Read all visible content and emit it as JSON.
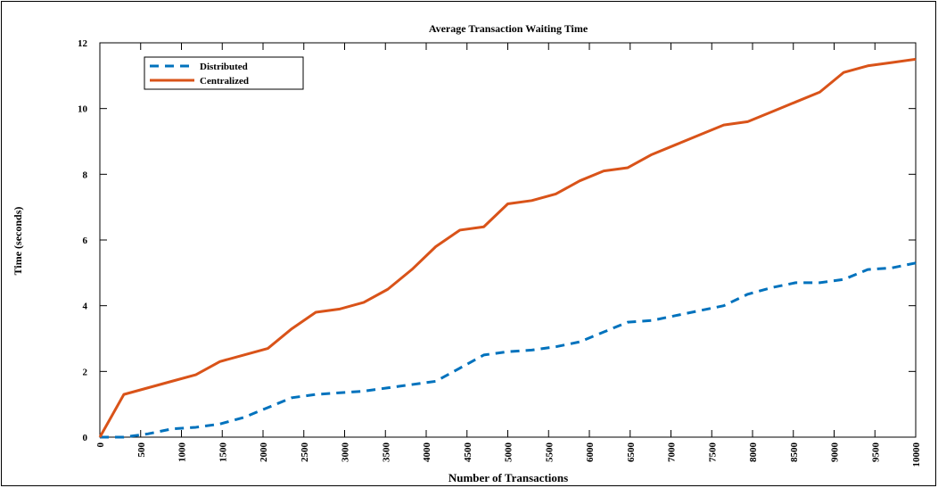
{
  "chart_data": {
    "type": "line",
    "title": "Average Transaction Waiting Time",
    "x_label": "Number of Transactions",
    "y_label": "Time (seconds)",
    "x": [
      0,
      294,
      588,
      882,
      1176,
      1471,
      1765,
      2059,
      2353,
      2647,
      2941,
      3235,
      3529,
      3824,
      4118,
      4412,
      4706,
      5000,
      5294,
      5588,
      5882,
      6176,
      6471,
      6765,
      7059,
      7353,
      7647,
      7941,
      8235,
      8529,
      8824,
      9118,
      9412,
      9706,
      10000
    ],
    "series": [
      {
        "name": "Distributed",
        "color": "#0072bd",
        "dash": true,
        "values": [
          0,
          0,
          0.1,
          0.25,
          0.3,
          0.4,
          0.6,
          0.9,
          1.2,
          1.3,
          1.35,
          1.4,
          1.5,
          1.6,
          1.7,
          2.1,
          2.5,
          2.6,
          2.65,
          2.75,
          2.9,
          3.2,
          3.5,
          3.55,
          3.7,
          3.85,
          4.0,
          4.35,
          4.55,
          4.7,
          4.7,
          4.8,
          5.1,
          5.15,
          5.3
        ]
      },
      {
        "name": "Centralized",
        "color": "#d95319",
        "dash": false,
        "values": [
          0,
          1.3,
          1.5,
          1.7,
          1.9,
          2.3,
          2.5,
          2.7,
          3.3,
          3.8,
          3.9,
          4.1,
          4.5,
          5.1,
          5.8,
          6.3,
          6.4,
          7.1,
          7.2,
          7.4,
          7.8,
          8.1,
          8.2,
          8.6,
          8.9,
          9.2,
          9.5,
          9.6,
          9.9,
          10.2,
          10.5,
          11.1,
          11.3,
          11.4,
          11.5
        ]
      }
    ],
    "xlim": [
      0,
      10000
    ],
    "xticks": [
      0,
      500,
      1000,
      1500,
      2000,
      2500,
      3000,
      3500,
      4000,
      4500,
      5000,
      5500,
      6000,
      6500,
      7000,
      7500,
      8000,
      8500,
      9000,
      9500,
      10000
    ],
    "ylim": [
      0,
      12
    ],
    "yticks": [
      0,
      2,
      4,
      6,
      8,
      10,
      12
    ],
    "legend": "upper left"
  }
}
